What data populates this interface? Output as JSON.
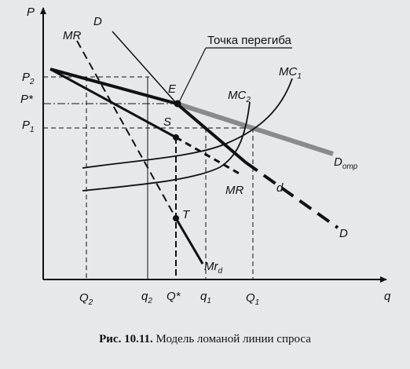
{
  "axes": {
    "y": "P",
    "x": "q"
  },
  "price_labels": {
    "p2": "P",
    "p2_sub": "2",
    "pstar": "P*",
    "p1": "P",
    "p1_sub": "1"
  },
  "qty_labels": {
    "Q2": "Q",
    "Q2_sub": "2",
    "q2": "q",
    "q2_sub": "2",
    "qstar": "Q*",
    "q1": "q",
    "q1_sub": "1",
    "Q1": "Q",
    "Q1_sub": "1"
  },
  "curve_labels": {
    "D_top": "D",
    "MR_top": "MR",
    "kink": "Точка перегиба",
    "E": "E",
    "S": "S",
    "T": "T",
    "MC1": "MC",
    "MC1_sub": "1",
    "MC2": "MC",
    "MC2_sub": "2",
    "D_otr": "D",
    "D_otr_sub": "отр",
    "MR_mid": "MR",
    "d": "d",
    "D_bottom": "D",
    "Mrd": "Mr",
    "Mrd_sub": "d"
  },
  "caption": {
    "number": "Рис. 10.11.",
    "text": " Модель ломаной линии спроса"
  },
  "colors": {
    "ink": "#111111",
    "grey_line": "#8a8a8a",
    "background": "#e7e8e9"
  }
}
